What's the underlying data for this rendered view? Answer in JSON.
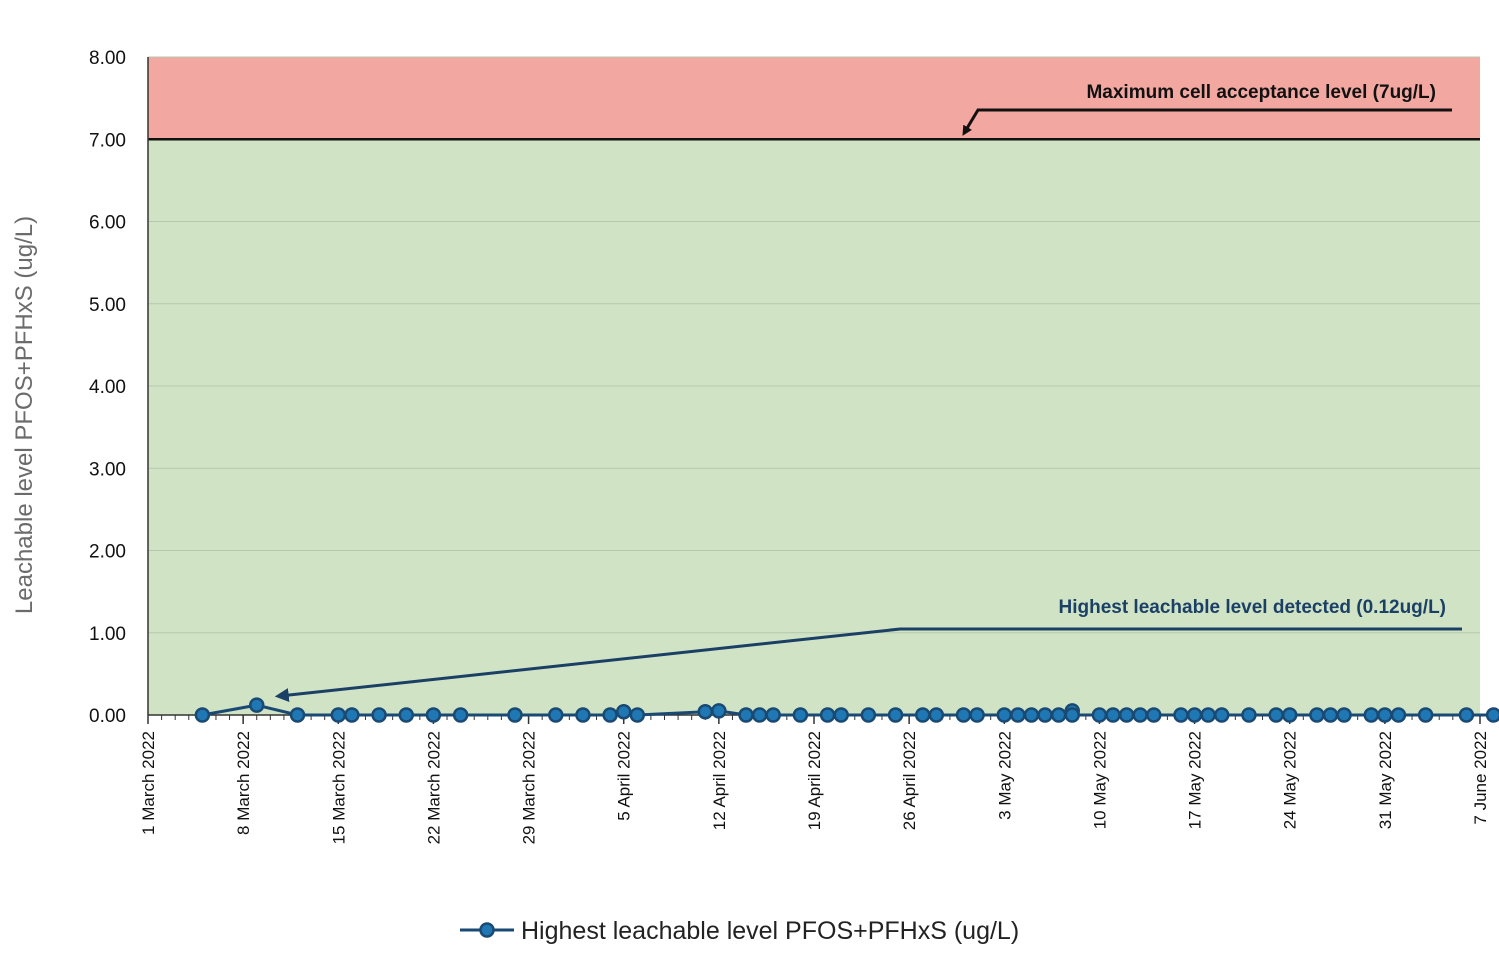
{
  "chart_data": {
    "type": "line",
    "ylabel": "Leachable level PFOS+PFHxS (ug/L)",
    "xlabel": "",
    "ylim": [
      0,
      8
    ],
    "yticks": [
      "0.00",
      "1.00",
      "2.00",
      "3.00",
      "4.00",
      "5.00",
      "6.00",
      "7.00",
      "8.00"
    ],
    "x_range": [
      "2022-03-01",
      "2022-06-07"
    ],
    "x_ticks": [
      {
        "date": "2022-03-01",
        "label": "1 March 2022"
      },
      {
        "date": "2022-03-08",
        "label": "8 March 2022"
      },
      {
        "date": "2022-03-15",
        "label": "15 March 2022"
      },
      {
        "date": "2022-03-22",
        "label": "22 March 2022"
      },
      {
        "date": "2022-03-29",
        "label": "29 March 2022"
      },
      {
        "date": "2022-04-05",
        "label": "5 April 2022"
      },
      {
        "date": "2022-04-12",
        "label": "12 April 2022"
      },
      {
        "date": "2022-04-19",
        "label": "19 April 2022"
      },
      {
        "date": "2022-04-26",
        "label": "26 April 2022"
      },
      {
        "date": "2022-05-03",
        "label": "3 May 2022"
      },
      {
        "date": "2022-05-10",
        "label": "10 May 2022"
      },
      {
        "date": "2022-05-17",
        "label": "17 May 2022"
      },
      {
        "date": "2022-05-24",
        "label": "24 May 2022"
      },
      {
        "date": "2022-05-31",
        "label": "31 May 2022"
      },
      {
        "date": "2022-06-07",
        "label": "7 June 2022"
      }
    ],
    "threshold": {
      "value": 7,
      "label": "Maximum cell acceptance level (7ug/L)"
    },
    "annotation": {
      "value": 0.12,
      "date": "2022-03-09",
      "label": "Highest leachable level detected (0.12ug/L)"
    },
    "zones": [
      {
        "from": 0,
        "to": 7,
        "color": "#d0e4c5"
      },
      {
        "from": 7,
        "to": 8,
        "color": "#f2a8a1"
      }
    ],
    "grid": true,
    "legend_position": "bottom",
    "series": [
      {
        "name": "Highest leachable level PFOS+PFHxS (ug/L)",
        "color": "#1a4a73",
        "marker_color": "#1f78b4",
        "points": [
          {
            "x": "2022-03-05",
            "y": 0
          },
          {
            "x": "2022-03-09",
            "y": 0.12
          },
          {
            "x": "2022-03-12",
            "y": 0
          },
          {
            "x": "2022-03-15",
            "y": 0
          },
          {
            "x": "2022-03-16",
            "y": 0
          },
          {
            "x": "2022-03-18",
            "y": 0
          },
          {
            "x": "2022-03-20",
            "y": 0
          },
          {
            "x": "2022-03-22",
            "y": 0
          },
          {
            "x": "2022-03-24",
            "y": 0
          },
          {
            "x": "2022-03-28",
            "y": 0
          },
          {
            "x": "2022-03-31",
            "y": 0
          },
          {
            "x": "2022-04-02",
            "y": 0
          },
          {
            "x": "2022-04-04",
            "y": 0
          },
          {
            "x": "2022-04-05",
            "y": 0.04
          },
          {
            "x": "2022-04-06",
            "y": 0
          },
          {
            "x": "2022-04-11",
            "y": 0.04
          },
          {
            "x": "2022-04-12",
            "y": 0.05
          },
          {
            "x": "2022-04-14",
            "y": 0
          },
          {
            "x": "2022-04-15",
            "y": 0
          },
          {
            "x": "2022-04-16",
            "y": 0
          },
          {
            "x": "2022-04-18",
            "y": 0
          },
          {
            "x": "2022-04-20",
            "y": 0
          },
          {
            "x": "2022-04-21",
            "y": 0
          },
          {
            "x": "2022-04-23",
            "y": 0
          },
          {
            "x": "2022-04-25",
            "y": 0
          },
          {
            "x": "2022-04-27",
            "y": 0
          },
          {
            "x": "2022-04-28",
            "y": 0
          },
          {
            "x": "2022-04-30",
            "y": 0
          },
          {
            "x": "2022-05-01",
            "y": 0
          },
          {
            "x": "2022-05-03",
            "y": 0
          },
          {
            "x": "2022-05-04",
            "y": 0
          },
          {
            "x": "2022-05-05",
            "y": 0
          },
          {
            "x": "2022-05-06",
            "y": 0
          },
          {
            "x": "2022-05-07",
            "y": 0
          },
          {
            "x": "2022-05-08",
            "y": 0.05
          },
          {
            "x": "2022-05-08",
            "y": 0
          },
          {
            "x": "2022-05-10",
            "y": 0
          },
          {
            "x": "2022-05-11",
            "y": 0
          },
          {
            "x": "2022-05-12",
            "y": 0
          },
          {
            "x": "2022-05-13",
            "y": 0
          },
          {
            "x": "2022-05-14",
            "y": 0
          },
          {
            "x": "2022-05-16",
            "y": 0
          },
          {
            "x": "2022-05-17",
            "y": 0
          },
          {
            "x": "2022-05-18",
            "y": 0
          },
          {
            "x": "2022-05-19",
            "y": 0
          },
          {
            "x": "2022-05-21",
            "y": 0
          },
          {
            "x": "2022-05-23",
            "y": 0
          },
          {
            "x": "2022-05-24",
            "y": 0
          },
          {
            "x": "2022-05-26",
            "y": 0
          },
          {
            "x": "2022-05-27",
            "y": 0
          },
          {
            "x": "2022-05-28",
            "y": 0
          },
          {
            "x": "2022-05-30",
            "y": 0
          },
          {
            "x": "2022-05-31",
            "y": 0
          },
          {
            "x": "2022-06-01",
            "y": 0
          },
          {
            "x": "2022-06-03",
            "y": 0
          },
          {
            "x": "2022-06-06",
            "y": 0
          },
          {
            "x": "2022-06-08",
            "y": 0
          }
        ]
      }
    ]
  }
}
